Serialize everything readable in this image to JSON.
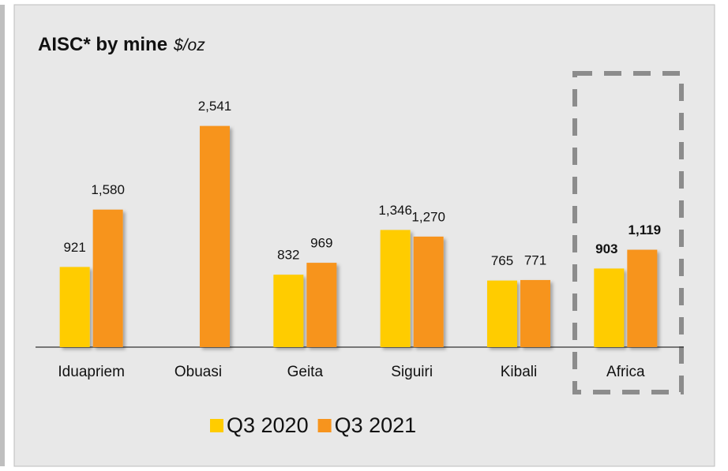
{
  "chart_data": {
    "type": "bar",
    "title": "AISC* by mine",
    "subtitle": "$/oz",
    "categories": [
      "Iduapriem",
      "Obuasi",
      "Geita",
      "Siguiri",
      "Kibali",
      "Africa"
    ],
    "series": [
      {
        "name": "Q3 2020",
        "color": "#ffcc00",
        "values": [
          921,
          null,
          832,
          1346,
          765,
          903
        ],
        "value_labels": [
          "921",
          null,
          "832",
          "1,346",
          "765",
          "903"
        ]
      },
      {
        "name": "Q3 2021",
        "color": "#f7941d",
        "values": [
          1580,
          2541,
          969,
          1270,
          771,
          1119
        ],
        "value_labels": [
          "1,580",
          "2,541",
          "969",
          "1,270",
          "771",
          "1,119"
        ]
      }
    ],
    "ylim": [
      0,
      3000
    ],
    "legend": "bottom"
  }
}
